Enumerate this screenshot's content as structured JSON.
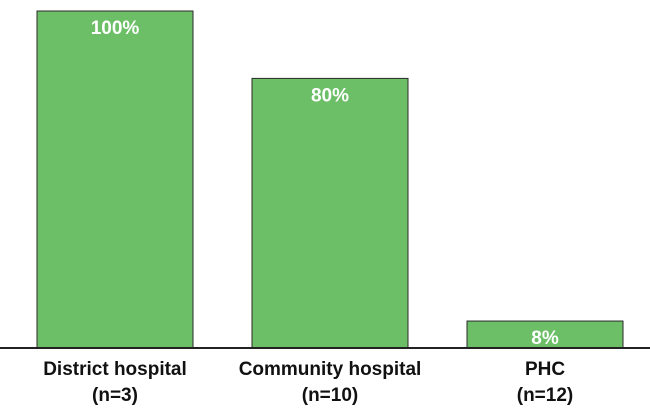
{
  "chart_data": {
    "type": "bar",
    "categories": [
      "District hospital",
      "Community hospital",
      "PHC"
    ],
    "category_counts": [
      "(n=3)",
      "(n=10)",
      "(n=12)"
    ],
    "values": [
      100,
      80,
      8
    ],
    "data_labels": [
      "100%",
      "80%",
      "8%"
    ],
    "ylim": [
      0,
      100
    ],
    "title": "",
    "xlabel": "",
    "ylabel": "",
    "grid": false,
    "legend": "none",
    "colors": {
      "bar": "#6dbf67",
      "bar_outline": "#2a2a2a",
      "label_text": "#ffffff",
      "axis_text": "#111111"
    }
  }
}
